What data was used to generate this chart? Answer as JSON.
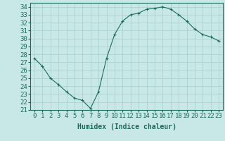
{
  "x": [
    0,
    1,
    2,
    3,
    4,
    5,
    6,
    7,
    8,
    9,
    10,
    11,
    12,
    13,
    14,
    15,
    16,
    17,
    18,
    19,
    20,
    21,
    22,
    23
  ],
  "y": [
    27.5,
    26.5,
    25.0,
    24.2,
    23.3,
    22.5,
    22.2,
    21.2,
    23.3,
    27.5,
    30.5,
    32.2,
    33.0,
    33.2,
    33.7,
    33.8,
    34.0,
    33.7,
    33.0,
    32.2,
    31.2,
    30.5,
    30.2,
    29.7
  ],
  "line_color": "#1a6b5a",
  "marker": "+",
  "marker_size": 3,
  "bg_color": "#c8e8e8",
  "grid_color": "#aacccc",
  "xlabel": "Humidex (Indice chaleur)",
  "xlim": [
    -0.5,
    23.5
  ],
  "ylim": [
    21,
    34.5
  ],
  "yticks": [
    21,
    22,
    23,
    24,
    25,
    26,
    27,
    28,
    29,
    30,
    31,
    32,
    33,
    34
  ],
  "xticks": [
    0,
    1,
    2,
    3,
    4,
    5,
    6,
    7,
    8,
    9,
    10,
    11,
    12,
    13,
    14,
    15,
    16,
    17,
    18,
    19,
    20,
    21,
    22,
    23
  ],
  "label_fontsize": 7,
  "tick_fontsize": 6.5
}
